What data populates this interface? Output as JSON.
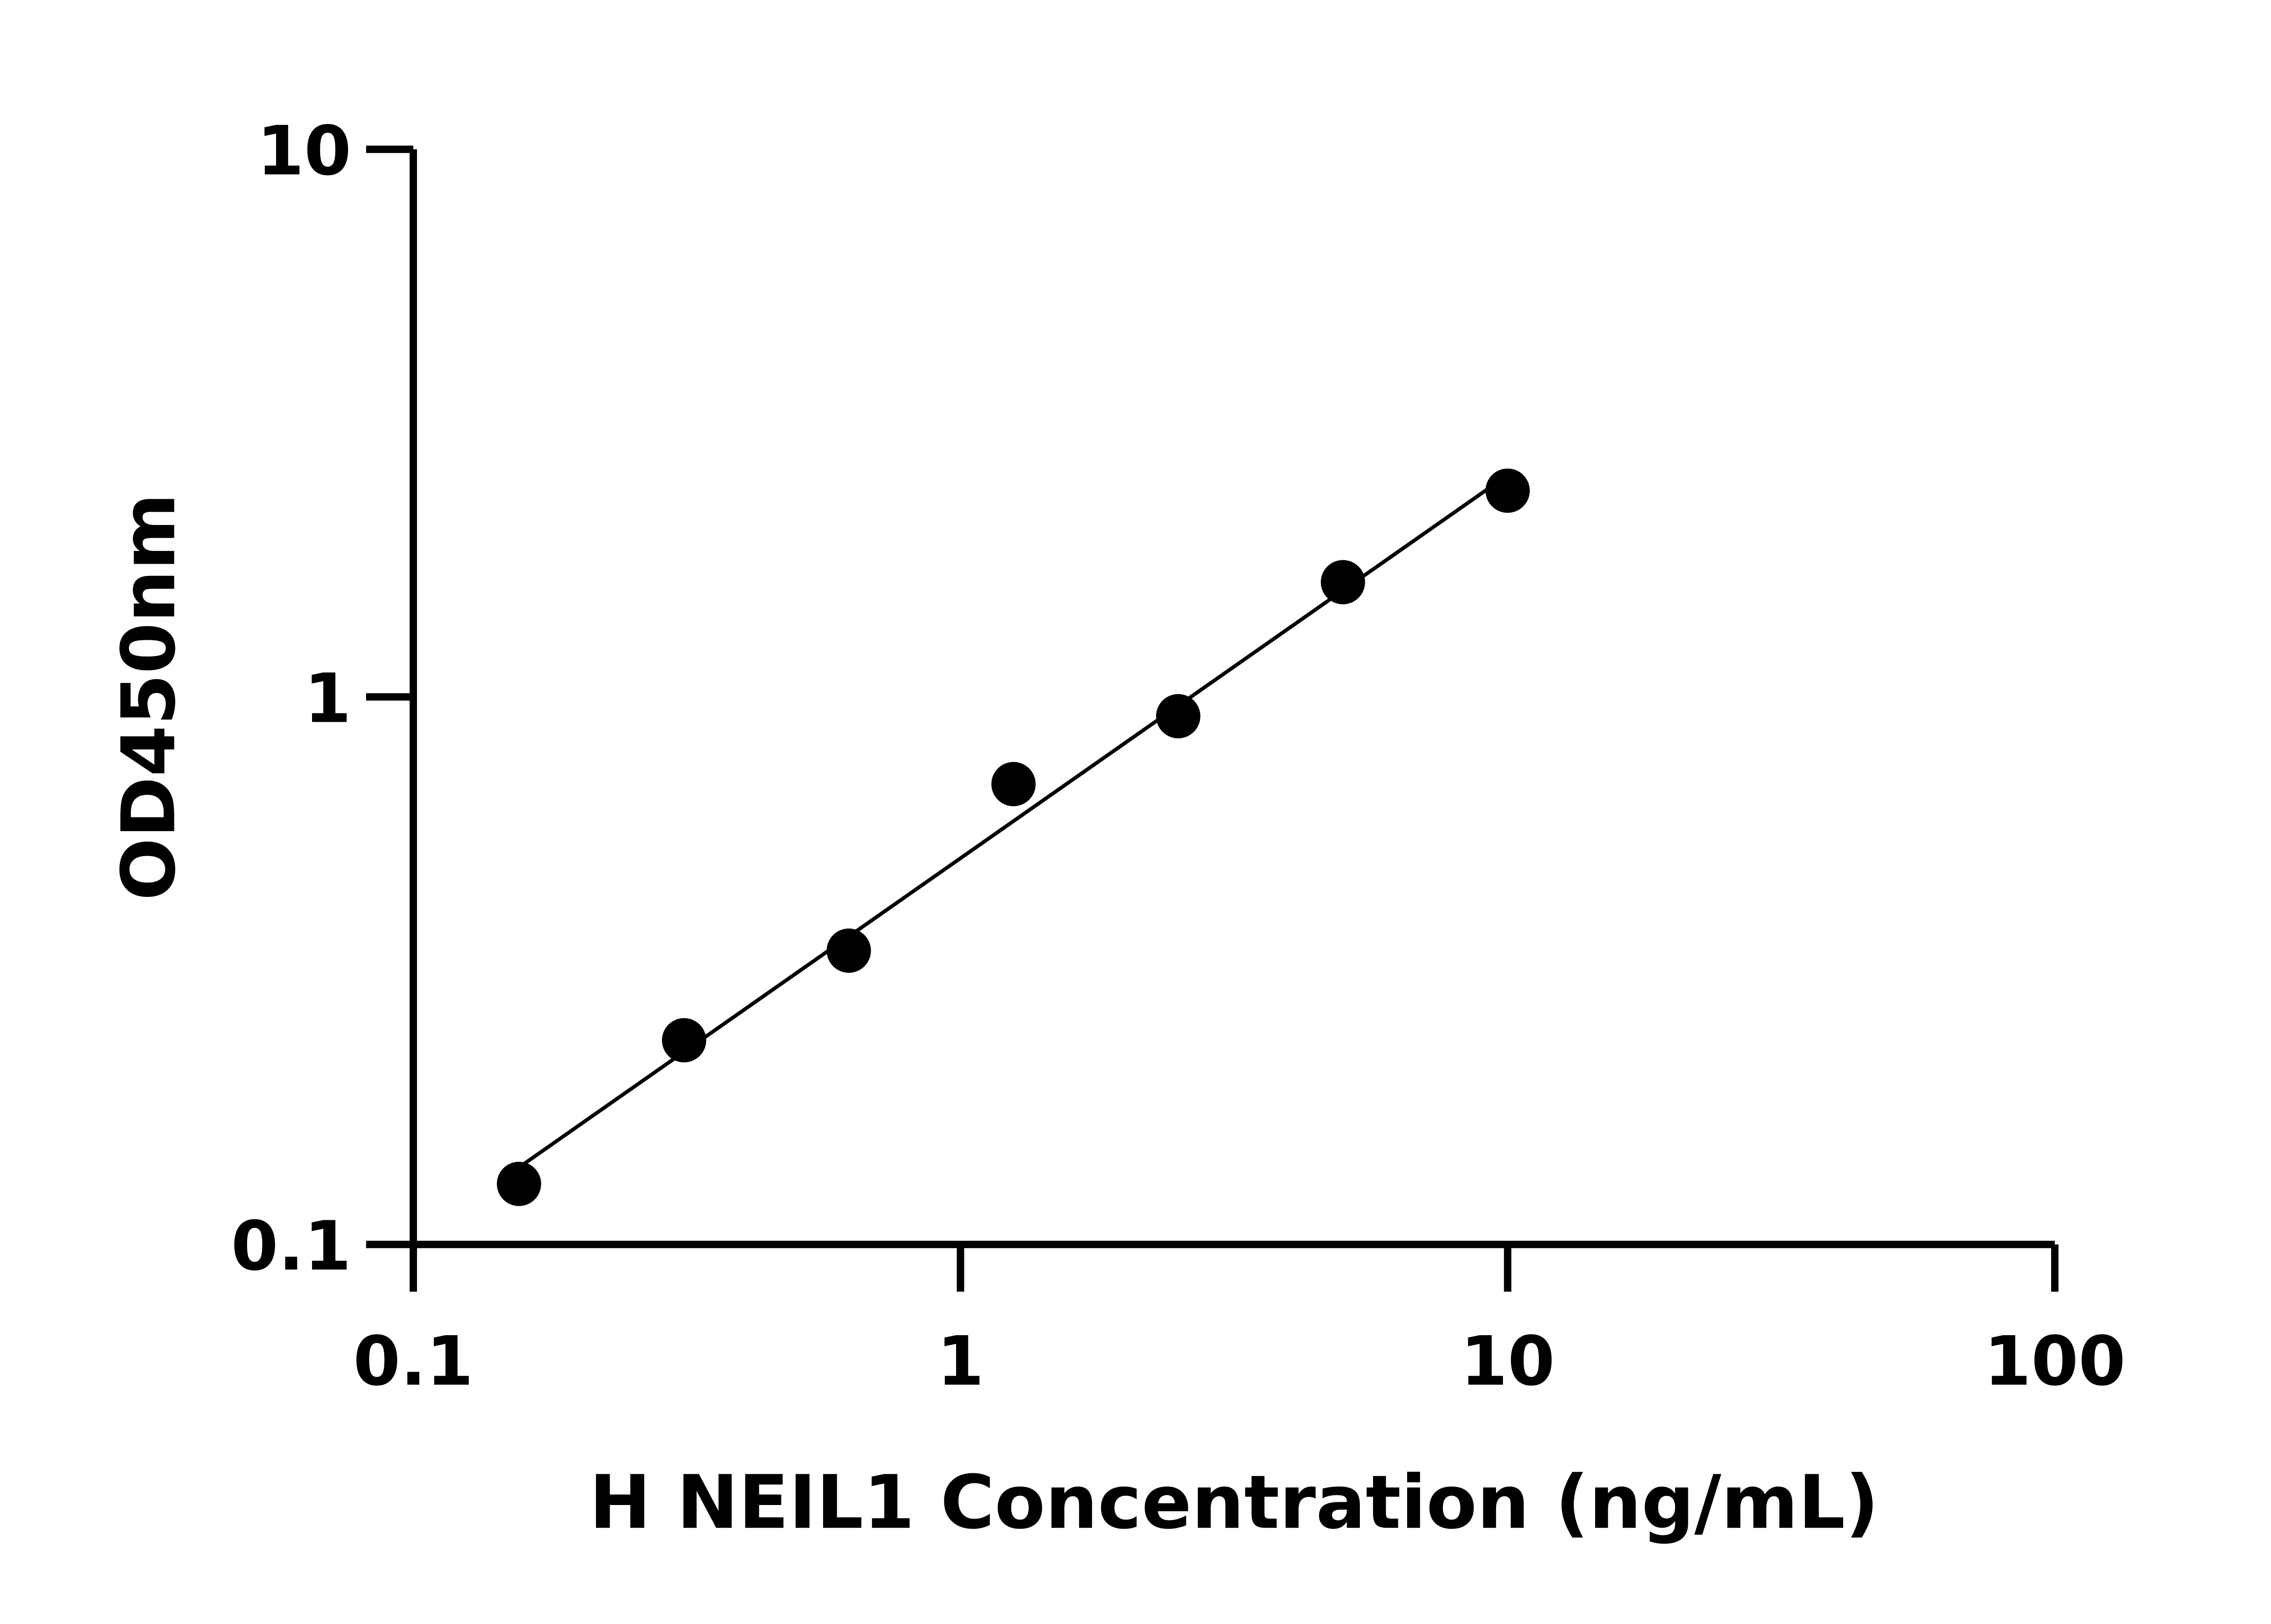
{
  "chart_data": {
    "type": "scatter",
    "title": "",
    "xlabel": "H NEIL1 Concentration (ng/mL)",
    "ylabel": "OD450nm",
    "x_scale": "log",
    "y_scale": "log",
    "xlim": [
      0.1,
      100
    ],
    "ylim": [
      0.1,
      10
    ],
    "x_ticks": [
      "0.1",
      "1",
      "10",
      "100"
    ],
    "y_ticks": [
      "0.1",
      "1",
      "10"
    ],
    "grid": false,
    "fit_line": true,
    "marker_color": "#000000",
    "series": [
      {
        "x": [
          0.156,
          0.3125,
          0.625,
          1.25,
          2.5,
          5,
          10
        ],
        "y": [
          0.129,
          0.236,
          0.344,
          0.693,
          0.922,
          1.62,
          2.38
        ]
      }
    ]
  }
}
